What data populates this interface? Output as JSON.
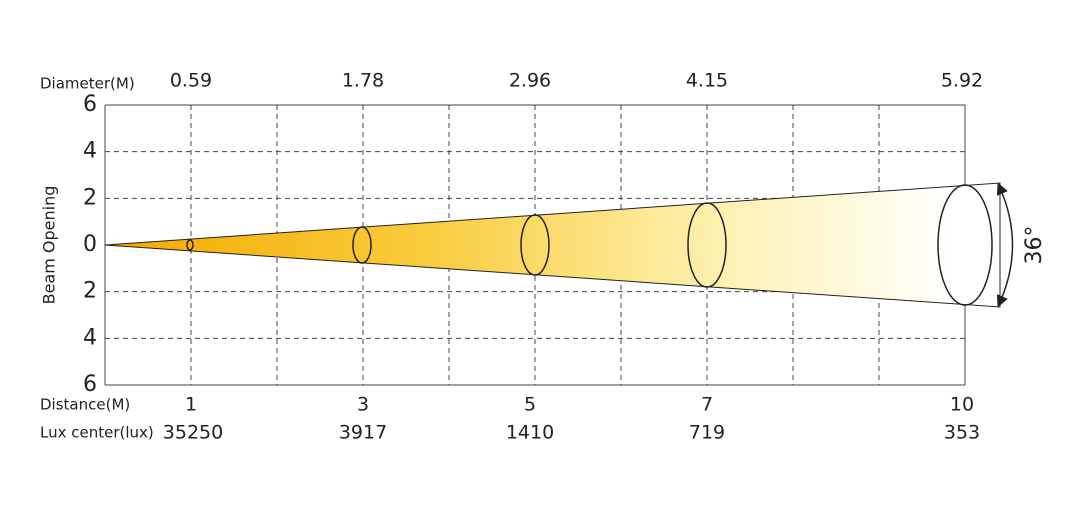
{
  "labels": {
    "diameter": "Diameter(M)",
    "distance": "Distance(M)",
    "lux": "Lux center(lux)",
    "y_axis": "Beam Opening",
    "angle": "36°"
  },
  "y_ticks": [
    "6",
    "4",
    "2",
    "0",
    "2",
    "4",
    "6"
  ],
  "columns": [
    {
      "diameter": "0.59",
      "distance": "1",
      "lux": "35250"
    },
    {
      "diameter": "1.78",
      "distance": "3",
      "lux": "3917"
    },
    {
      "diameter": "2.96",
      "distance": "5",
      "lux": "1410"
    },
    {
      "diameter": "4.15",
      "distance": "7",
      "lux": "719"
    },
    {
      "diameter": "5.92",
      "distance": "10",
      "lux": "353"
    }
  ]
}
